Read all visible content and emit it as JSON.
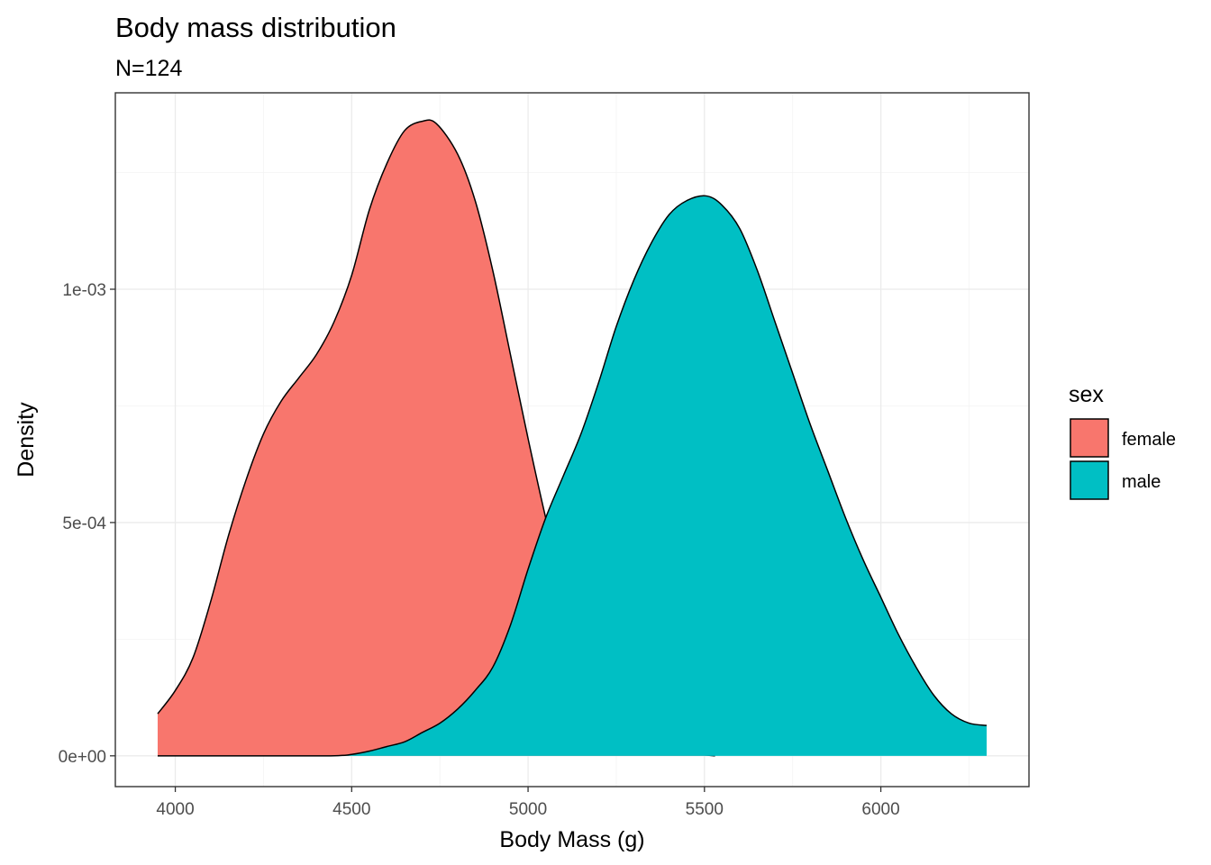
{
  "chart_data": {
    "type": "area",
    "title": "Body mass distribution",
    "subtitle": "N=124",
    "xlabel": "Body Mass (g)",
    "ylabel": "Density",
    "xlim": [
      3830,
      6420
    ],
    "ylim": [
      -6.6e-05,
      0.001421
    ],
    "x_ticks": [
      4000,
      4500,
      5000,
      5500,
      6000
    ],
    "x_tick_labels": [
      "4000",
      "4500",
      "5000",
      "5500",
      "6000"
    ],
    "y_ticks": [
      0,
      0.0005,
      0.001
    ],
    "y_tick_labels": [
      "0e+00",
      "5e-04",
      "1e-03"
    ],
    "grid": true,
    "legend": {
      "title": "sex",
      "placement": "right"
    },
    "series": [
      {
        "name": "female",
        "color": "#F8766D",
        "x": [
          3950,
          4000,
          4050,
          4100,
          4150,
          4200,
          4250,
          4300,
          4350,
          4400,
          4450,
          4500,
          4550,
          4600,
          4650,
          4700,
          4740,
          4800,
          4850,
          4900,
          4950,
          5000,
          5050,
          5100,
          5150,
          5200,
          5250,
          5300,
          5350,
          5400,
          5450,
          5500,
          5530
        ],
        "values": [
          9e-05,
          0.00014,
          0.00021,
          0.00033,
          0.00047,
          0.00059,
          0.00069,
          0.00076,
          0.00081,
          0.00086,
          0.00093,
          0.00103,
          0.00117,
          0.00127,
          0.00134,
          0.00136,
          0.001355,
          0.00129,
          0.00119,
          0.00104,
          0.00086,
          0.00068,
          0.00051,
          0.00036,
          0.00024,
          0.00014,
          8e-05,
          4e-05,
          2e-05,
          1e-05,
          5e-06,
          2e-06,
          0
        ]
      },
      {
        "name": "male",
        "color": "#00BFC4",
        "x": [
          3950,
          4200,
          4440,
          4500,
          4550,
          4600,
          4650,
          4700,
          4750,
          4800,
          4850,
          4900,
          4950,
          5000,
          5050,
          5100,
          5150,
          5200,
          5250,
          5300,
          5350,
          5400,
          5450,
          5505,
          5550,
          5600,
          5650,
          5700,
          5750,
          5800,
          5850,
          5900,
          5950,
          6000,
          6050,
          6100,
          6150,
          6200,
          6250,
          6300
        ],
        "values": [
          0,
          0,
          0,
          3e-06,
          1e-05,
          2e-05,
          3e-05,
          5e-05,
          7e-05,
          0.0001,
          0.00014,
          0.00019,
          0.00028,
          0.0004,
          0.00051,
          0.0006,
          0.00069,
          0.0008,
          0.00092,
          0.00102,
          0.0011,
          0.00116,
          0.00119,
          0.0012,
          0.00118,
          0.00113,
          0.00104,
          0.00093,
          0.00082,
          0.00071,
          0.00061,
          0.00051,
          0.00042,
          0.00034,
          0.00026,
          0.00019,
          0.00013,
          9e-05,
          7e-05,
          6.5e-05
        ]
      }
    ]
  }
}
